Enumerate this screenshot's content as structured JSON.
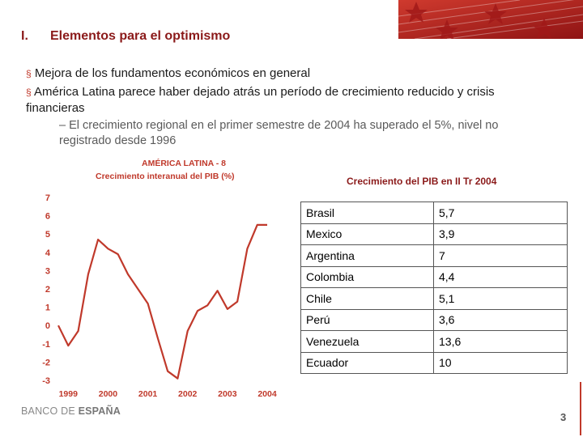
{
  "section": {
    "number": "I.",
    "title": "Elementos para el optimismo"
  },
  "bullets": [
    "Mejora de los fundamentos económicos en general",
    "América Latina parece haber dejado atrás un período de crecimiento reducido y crisis financieras"
  ],
  "bullet_marker": "§",
  "sub_bullet": "– El crecimiento regional en el primer semestre de 2004 ha superado el 5%, nivel no registrado desde 1996",
  "chart_data": {
    "type": "line",
    "title": "AMÉRICA LATINA - 8",
    "subtitle": "Crecimiento interanual del PIB (%)",
    "x": [
      1998.75,
      1999.0,
      1999.25,
      1999.5,
      1999.75,
      2000.0,
      2000.25,
      2000.5,
      2000.75,
      2001.0,
      2001.25,
      2001.5,
      2001.75,
      2002.0,
      2002.25,
      2002.5,
      2002.75,
      2003.0,
      2003.25,
      2003.5,
      2003.75,
      2004.0
    ],
    "y": [
      0.0,
      -1.1,
      -0.3,
      2.8,
      4.7,
      4.2,
      3.9,
      2.8,
      2.0,
      1.2,
      -0.7,
      -2.5,
      -2.9,
      -0.3,
      0.8,
      1.1,
      1.9,
      0.9,
      1.3,
      4.2,
      5.5,
      5.5
    ],
    "x_ticks": [
      "1999",
      "2000",
      "2001",
      "2002",
      "2003",
      "2004"
    ],
    "y_ticks": [
      "7",
      "6",
      "5",
      "4",
      "3",
      "2",
      "1",
      "0",
      "-1",
      "-2",
      "-3"
    ],
    "ylim": [
      -3,
      7
    ],
    "grid": false,
    "line_color": "#c0392b"
  },
  "table": {
    "title": "Crecimiento del PIB en II Tr 2004",
    "rows": [
      [
        "Brasil",
        "5,7"
      ],
      [
        "Mexico",
        "3,9"
      ],
      [
        "Argentina",
        "7"
      ],
      [
        "Colombia",
        "4,4"
      ],
      [
        "Chile",
        "5,1"
      ],
      [
        "Perú",
        "3,6"
      ],
      [
        "Venezuela",
        "13,6"
      ],
      [
        "Ecuador",
        "10"
      ]
    ]
  },
  "logo": {
    "part1": "BANCO DE ",
    "part2": "ESPAÑA"
  },
  "page_number": "3",
  "colors": {
    "accent": "#8b1a1a",
    "banner": "#b51f1f",
    "chart_line": "#c0392b"
  }
}
